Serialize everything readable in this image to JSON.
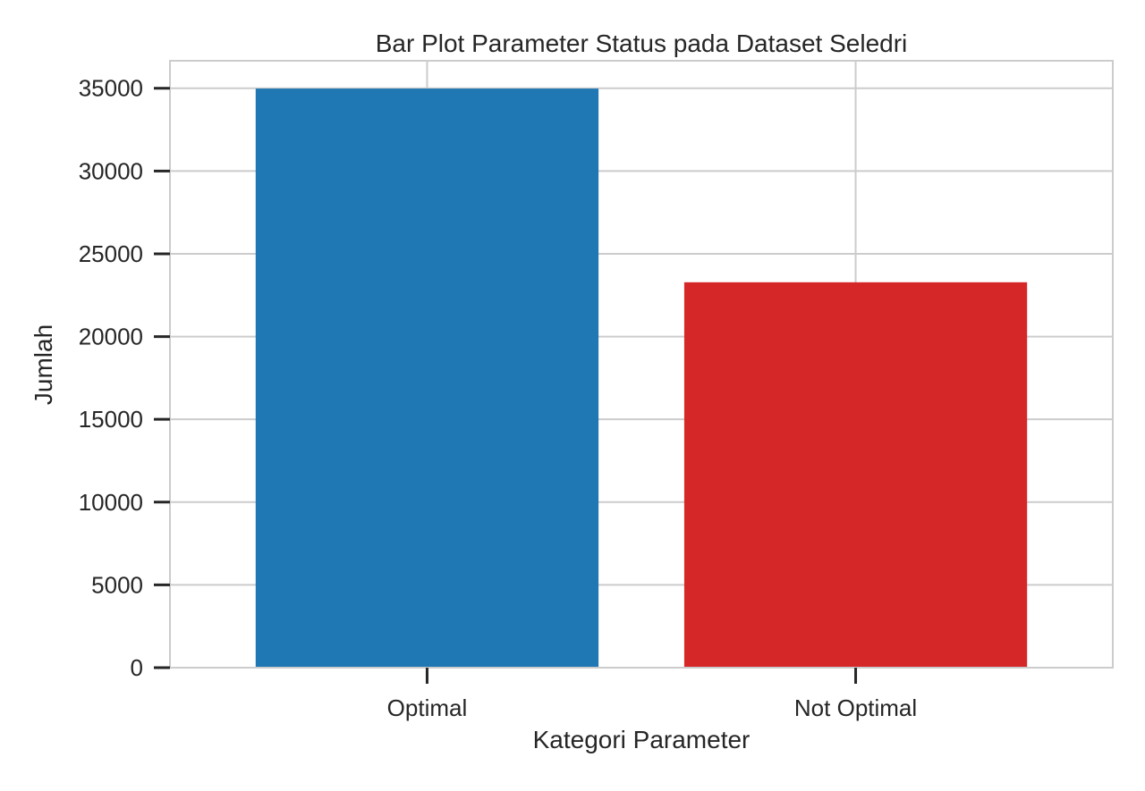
{
  "chart_data": {
    "type": "bar",
    "title": "Bar Plot Parameter Status pada Dataset Seledri",
    "xlabel": "Kategori Parameter",
    "ylabel": "Jumlah",
    "categories": [
      "Optimal",
      "Not Optimal"
    ],
    "values": [
      34980,
      23280
    ],
    "bar_colors": [
      "#1f77b4",
      "#d62728"
    ],
    "ylim": [
      0,
      36660
    ],
    "yticks": [
      0,
      5000,
      10000,
      15000,
      20000,
      25000,
      30000,
      35000
    ],
    "ytick_labels": [
      "0",
      "5000",
      "10000",
      "15000",
      "20000",
      "25000",
      "30000",
      "35000"
    ],
    "grid": true,
    "grid_color": "#cccccc",
    "axis_color": "#262626"
  }
}
